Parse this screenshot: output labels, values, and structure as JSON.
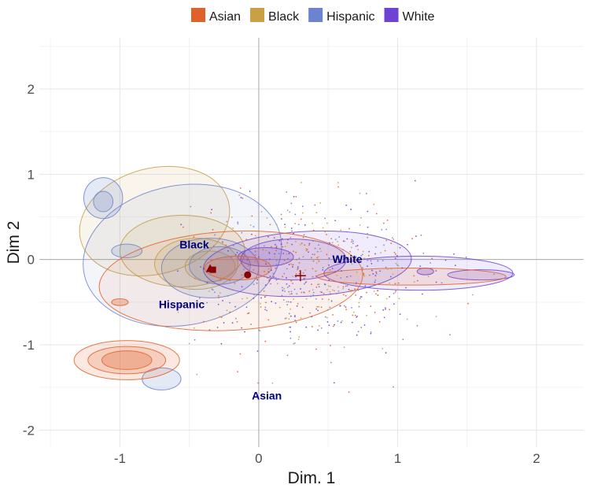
{
  "chart_data": {
    "type": "scatter",
    "title": "",
    "xlabel": "Dim. 1",
    "ylabel": "Dim 2",
    "xlim": [
      -1.58,
      2.34
    ],
    "ylim": [
      -2.2,
      2.6
    ],
    "x_ticks": [
      -1,
      0,
      1,
      2
    ],
    "y_ticks": [
      -2,
      -1,
      0,
      1,
      2
    ],
    "grid": true,
    "legend_position": "top",
    "series": [
      {
        "name": "Asian",
        "color": "#E0622B"
      },
      {
        "name": "Black",
        "color": "#C9A045"
      },
      {
        "name": "Hispanic",
        "color": "#6C84CF"
      },
      {
        "name": "White",
        "color": "#6E42D3"
      }
    ],
    "group_labels": [
      {
        "text": "Black",
        "x": -0.57,
        "y": 0.13
      },
      {
        "text": "White",
        "x": 0.53,
        "y": -0.04
      },
      {
        "text": "Hispanic",
        "x": -0.72,
        "y": -0.57
      },
      {
        "text": "Asian",
        "x": -0.05,
        "y": -1.64
      }
    ],
    "centroids": [
      {
        "group": "Asian",
        "shape": "triangle",
        "x": -0.35,
        "y": -0.11
      },
      {
        "group": "Black",
        "shape": "square",
        "x": -0.33,
        "y": -0.12
      },
      {
        "group": "Hispanic",
        "shape": "circle",
        "x": -0.08,
        "y": -0.18
      },
      {
        "group": "White",
        "shape": "cross",
        "x": 0.3,
        "y": -0.19
      }
    ]
  }
}
